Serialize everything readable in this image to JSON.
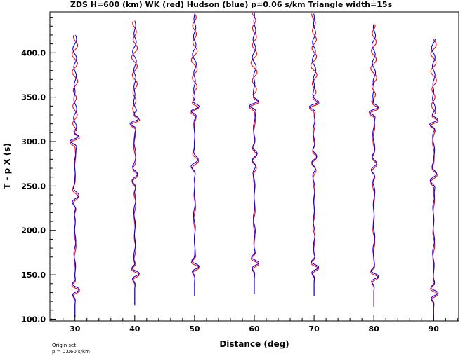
{
  "chart_data": {
    "type": "line",
    "title": "ZDS H=600 (km) WK (red) Hudson (blue) p=0.06 s/km Triangle width=15s",
    "xlabel": "Distance (deg)",
    "ylabel": "T - p X (s)",
    "xlim": [
      25.8,
      94.2
    ],
    "ylim": [
      98,
      446
    ],
    "xticks": [
      "30",
      "40",
      "50",
      "60",
      "70",
      "80",
      "90"
    ],
    "yticks": [
      "100.0",
      "150.0",
      "200.0",
      "250.0",
      "300.0",
      "350.0",
      "400.0"
    ],
    "grid": false,
    "colors": {
      "WK": "#ff0000",
      "Hudson": "#0000ff"
    },
    "traces": [
      {
        "distance": 30,
        "start": 102,
        "first_arrival": 130,
        "surface_phase": 303,
        "late_phase": 236,
        "end": 420
      },
      {
        "distance": 40,
        "start": 116,
        "first_arrival": 148,
        "surface_phase": 323,
        "late_phase": 260,
        "end": 436
      },
      {
        "distance": 50,
        "start": 126,
        "first_arrival": 156,
        "surface_phase": 337,
        "late_phase": 276,
        "end": 444
      },
      {
        "distance": 60,
        "start": 128,
        "first_arrival": 160,
        "surface_phase": 343,
        "late_phase": 283,
        "end": 446
      },
      {
        "distance": 70,
        "start": 126,
        "first_arrival": 155,
        "surface_phase": 342,
        "late_phase": 280,
        "end": 444
      },
      {
        "distance": 80,
        "start": 114,
        "first_arrival": 145,
        "surface_phase": 336,
        "late_phase": 272,
        "end": 432
      },
      {
        "distance": 90,
        "start": 98,
        "first_arrival": 126,
        "surface_phase": 322,
        "late_phase": 260,
        "end": 416
      }
    ]
  },
  "footnote": {
    "line1": "Origin set",
    "line2": "p = 0.060 s/km"
  }
}
